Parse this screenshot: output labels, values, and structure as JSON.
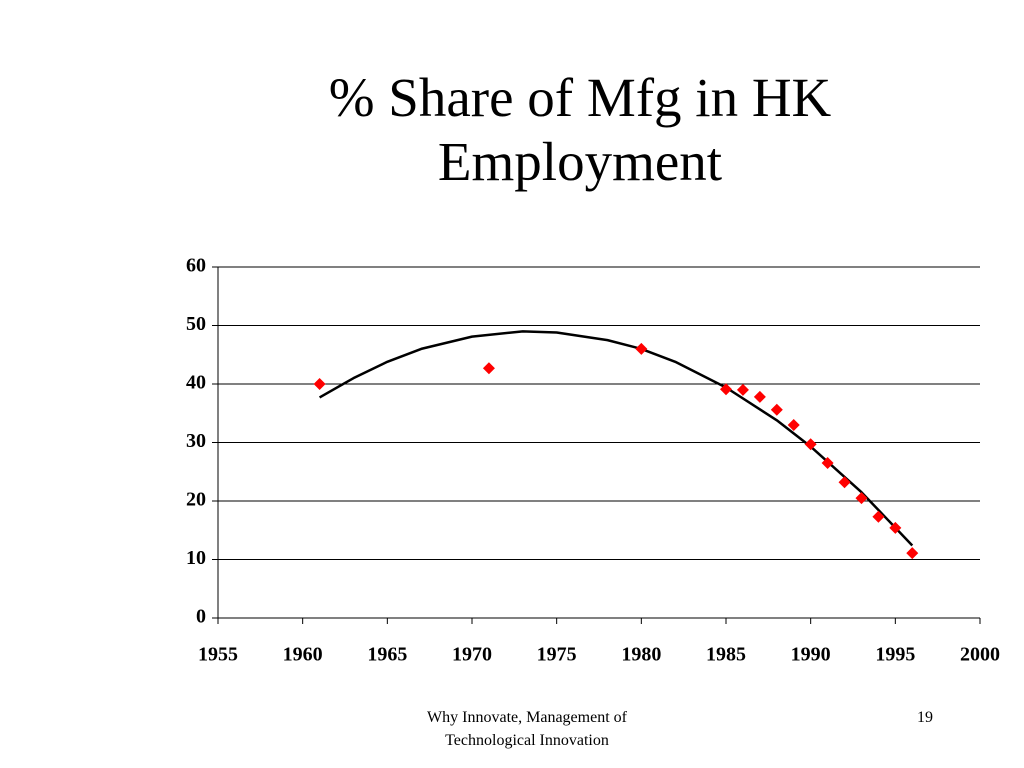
{
  "chart_data": {
    "type": "scatter",
    "title": "% Share of Mfg in HK Employment",
    "x": [
      1961,
      1971,
      1980,
      1985,
      1986,
      1987,
      1988,
      1989,
      1990,
      1991,
      1992,
      1993,
      1994,
      1995,
      1996
    ],
    "values": [
      40.0,
      42.7,
      46.0,
      39.1,
      39.0,
      37.8,
      35.6,
      33.0,
      29.7,
      26.5,
      23.2,
      20.5,
      17.3,
      15.4,
      11.1
    ],
    "color": "#ff0000",
    "trendline": {
      "color": "#000000",
      "x": [
        1961,
        1963,
        1965,
        1967,
        1970,
        1973,
        1975,
        1978,
        1980,
        1982,
        1985,
        1988,
        1990,
        1993,
        1996
      ],
      "values": [
        37.7,
        41.0,
        43.8,
        46.0,
        48.1,
        49.0,
        48.8,
        47.5,
        46.0,
        43.8,
        39.4,
        33.8,
        29.3,
        21.5,
        12.4
      ]
    },
    "xlim": [
      1955,
      2000
    ],
    "xticks": [
      1955,
      1960,
      1965,
      1970,
      1975,
      1980,
      1985,
      1990,
      1995,
      2000
    ],
    "ylim": [
      0,
      60
    ],
    "yticks": [
      0,
      10,
      20,
      30,
      40,
      50,
      60
    ],
    "grid": true
  },
  "footer": {
    "lines": [
      "Why Innovate, Management of",
      "Technological Innovation"
    ],
    "page_number": "19"
  }
}
